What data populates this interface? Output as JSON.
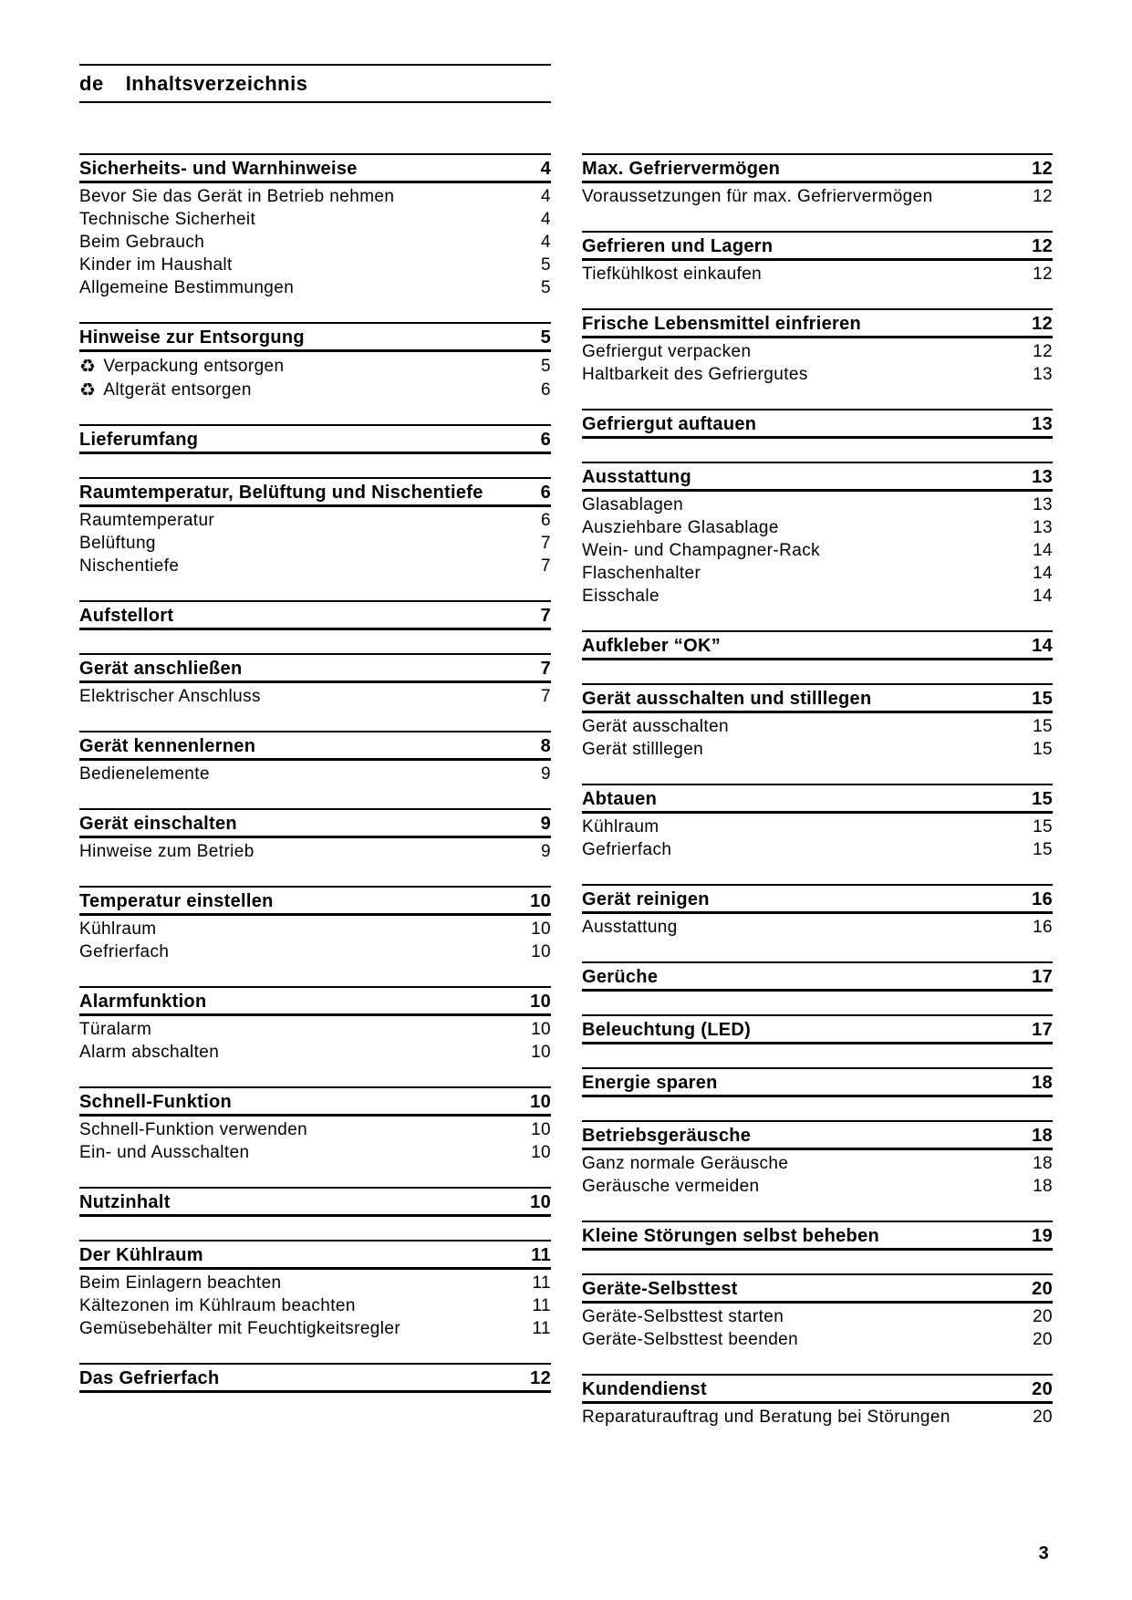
{
  "header": {
    "language_code": "de",
    "title": "Inhaltsverzeichnis"
  },
  "footer": {
    "page_number": "3"
  },
  "icons": {
    "recycle": "♻"
  },
  "toc": {
    "left": [
      {
        "heading": "Sicherheits- und Warnhinweise",
        "page": "4",
        "entries": [
          {
            "label": "Bevor Sie das Gerät in Betrieb nehmen",
            "page": "4"
          },
          {
            "label": "Technische Sicherheit",
            "page": "4"
          },
          {
            "label": "Beim Gebrauch",
            "page": "4"
          },
          {
            "label": "Kinder im Haushalt",
            "page": "5"
          },
          {
            "label": "Allgemeine Bestimmungen",
            "page": "5"
          }
        ]
      },
      {
        "heading": "Hinweise zur Entsorgung",
        "page": "5",
        "entries": [
          {
            "icon": "recycle",
            "label": "Verpackung entsorgen",
            "page": "5"
          },
          {
            "icon": "recycle",
            "label": "Altgerät entsorgen",
            "page": "6"
          }
        ]
      },
      {
        "heading": "Lieferumfang",
        "page": "6",
        "entries": []
      },
      {
        "heading": "Raumtemperatur, Belüftung und Nischentiefe",
        "page": "6",
        "entries": [
          {
            "label": "Raumtemperatur",
            "page": "6"
          },
          {
            "label": "Belüftung",
            "page": "7"
          },
          {
            "label": "Nischentiefe",
            "page": "7"
          }
        ]
      },
      {
        "heading": "Aufstellort",
        "page": "7",
        "entries": []
      },
      {
        "heading": "Gerät anschließen",
        "page": "7",
        "entries": [
          {
            "label": "Elektrischer Anschluss",
            "page": "7"
          }
        ]
      },
      {
        "heading": "Gerät kennenlernen",
        "page": "8",
        "entries": [
          {
            "label": "Bedienelemente",
            "page": "9"
          }
        ]
      },
      {
        "heading": "Gerät einschalten",
        "page": "9",
        "entries": [
          {
            "label": "Hinweise zum Betrieb",
            "page": "9"
          }
        ]
      },
      {
        "heading": "Temperatur einstellen",
        "page": "10",
        "entries": [
          {
            "label": "Kühlraum",
            "page": "10"
          },
          {
            "label": "Gefrierfach",
            "page": "10"
          }
        ]
      },
      {
        "heading": "Alarmfunktion",
        "page": "10",
        "entries": [
          {
            "label": "Türalarm",
            "page": "10"
          },
          {
            "label": "Alarm abschalten",
            "page": "10"
          }
        ]
      },
      {
        "heading": "Schnell-Funktion",
        "page": "10",
        "entries": [
          {
            "label": "Schnell-Funktion verwenden",
            "page": "10"
          },
          {
            "label": "Ein- und Ausschalten",
            "page": "10"
          }
        ]
      },
      {
        "heading": "Nutzinhalt",
        "page": "10",
        "entries": []
      },
      {
        "heading": "Der Kühlraum",
        "page": "11",
        "entries": [
          {
            "label": "Beim Einlagern beachten",
            "page": "11"
          },
          {
            "label": "Kältezonen im Kühlraum beachten",
            "page": "11"
          },
          {
            "label": "Gemüsebehälter mit Feuchtigkeitsregler",
            "page": "11"
          }
        ]
      },
      {
        "heading": "Das Gefrierfach",
        "page": "12",
        "entries": []
      }
    ],
    "right": [
      {
        "heading": "Max. Gefriervermögen",
        "page": "12",
        "entries": [
          {
            "label": "Voraussetzungen für max. Gefriervermögen",
            "page": "12"
          }
        ]
      },
      {
        "heading": "Gefrieren und Lagern",
        "page": "12",
        "entries": [
          {
            "label": "Tiefkühlkost einkaufen",
            "page": "12"
          }
        ]
      },
      {
        "heading": "Frische Lebensmittel einfrieren",
        "page": "12",
        "entries": [
          {
            "label": "Gefriergut verpacken",
            "page": "12"
          },
          {
            "label": "Haltbarkeit des Gefriergutes",
            "page": "13"
          }
        ]
      },
      {
        "heading": "Gefriergut auftauen",
        "page": "13",
        "entries": []
      },
      {
        "heading": "Ausstattung",
        "page": "13",
        "entries": [
          {
            "label": "Glasablagen",
            "page": "13"
          },
          {
            "label": "Ausziehbare Glasablage",
            "page": "13"
          },
          {
            "label": "Wein- und Champagner-Rack",
            "page": "14"
          },
          {
            "label": "Flaschenhalter",
            "page": "14"
          },
          {
            "label": "Eisschale",
            "page": "14"
          }
        ]
      },
      {
        "heading": "Aufkleber “OK”",
        "page": "14",
        "entries": []
      },
      {
        "heading": "Gerät ausschalten und stilllegen",
        "page": "15",
        "entries": [
          {
            "label": "Gerät ausschalten",
            "page": "15"
          },
          {
            "label": "Gerät stilllegen",
            "page": "15"
          }
        ]
      },
      {
        "heading": "Abtauen",
        "page": "15",
        "entries": [
          {
            "label": "Kühlraum",
            "page": "15"
          },
          {
            "label": "Gefrierfach",
            "page": "15"
          }
        ]
      },
      {
        "heading": "Gerät reinigen",
        "page": "16",
        "entries": [
          {
            "label": "Ausstattung",
            "page": "16"
          }
        ]
      },
      {
        "heading": "Gerüche",
        "page": "17",
        "entries": []
      },
      {
        "heading": "Beleuchtung (LED)",
        "page": "17",
        "entries": []
      },
      {
        "heading": "Energie sparen",
        "page": "18",
        "entries": []
      },
      {
        "heading": "Betriebsgeräusche",
        "page": "18",
        "entries": [
          {
            "label": "Ganz normale Geräusche",
            "page": "18"
          },
          {
            "label": "Geräusche vermeiden",
            "page": "18"
          }
        ]
      },
      {
        "heading": "Kleine Störungen selbst beheben",
        "page": "19",
        "entries": []
      },
      {
        "heading": "Geräte-Selbsttest",
        "page": "20",
        "entries": [
          {
            "label": "Geräte-Selbsttest starten",
            "page": "20"
          },
          {
            "label": "Geräte-Selbsttest beenden",
            "page": "20"
          }
        ]
      },
      {
        "heading": "Kundendienst",
        "page": "20",
        "entries": [
          {
            "label": "Reparaturauftrag und Beratung bei Störungen",
            "page": "20"
          }
        ]
      }
    ]
  }
}
